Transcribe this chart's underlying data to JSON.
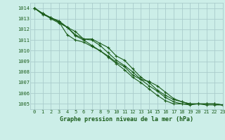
{
  "title": "Graphe pression niveau de la mer (hPa)",
  "bg_color": "#cceee8",
  "grid_color": "#aacccc",
  "line_color": "#1a5c1a",
  "xlim": [
    -0.5,
    23
  ],
  "ylim": [
    1004.5,
    1014.5
  ],
  "xticks": [
    0,
    1,
    2,
    3,
    4,
    5,
    6,
    7,
    8,
    9,
    10,
    11,
    12,
    13,
    14,
    15,
    16,
    17,
    18,
    19,
    20,
    21,
    22,
    23
  ],
  "yticks": [
    1005,
    1006,
    1007,
    1008,
    1009,
    1010,
    1011,
    1012,
    1013,
    1014
  ],
  "series": [
    [
      1014.0,
      1013.5,
      1013.1,
      1012.7,
      1012.2,
      1011.8,
      1011.1,
      1011.1,
      1010.7,
      1010.3,
      1009.5,
      1009.1,
      1008.3,
      1007.5,
      1007.0,
      1006.3,
      1005.8,
      1005.4,
      1005.2,
      1005.0,
      1005.0,
      1005.0,
      1005.0,
      1004.9
    ],
    [
      1014.0,
      1013.5,
      1013.1,
      1012.8,
      1012.2,
      1011.5,
      1011.1,
      1011.0,
      1010.5,
      1009.8,
      1009.1,
      1008.6,
      1008.0,
      1007.3,
      1007.1,
      1006.7,
      1006.1,
      1005.5,
      1005.2,
      1005.0,
      1005.0,
      1005.0,
      1005.0,
      1004.9
    ],
    [
      1014.0,
      1013.5,
      1013.0,
      1012.6,
      1012.2,
      1011.4,
      1011.0,
      1010.5,
      1010.0,
      1009.5,
      1008.9,
      1008.5,
      1007.7,
      1007.3,
      1006.7,
      1006.2,
      1005.6,
      1005.2,
      1005.0,
      1004.9,
      1005.0,
      1004.9,
      1004.9,
      1004.9
    ],
    [
      1014.0,
      1013.4,
      1013.1,
      1012.7,
      1011.5,
      1011.0,
      1010.8,
      1010.4,
      1010.0,
      1009.4,
      1008.8,
      1008.2,
      1007.5,
      1007.0,
      1006.4,
      1005.8,
      1005.3,
      1005.0,
      1005.0,
      1005.0,
      1005.0,
      1005.0,
      1005.0,
      1004.9
    ]
  ]
}
